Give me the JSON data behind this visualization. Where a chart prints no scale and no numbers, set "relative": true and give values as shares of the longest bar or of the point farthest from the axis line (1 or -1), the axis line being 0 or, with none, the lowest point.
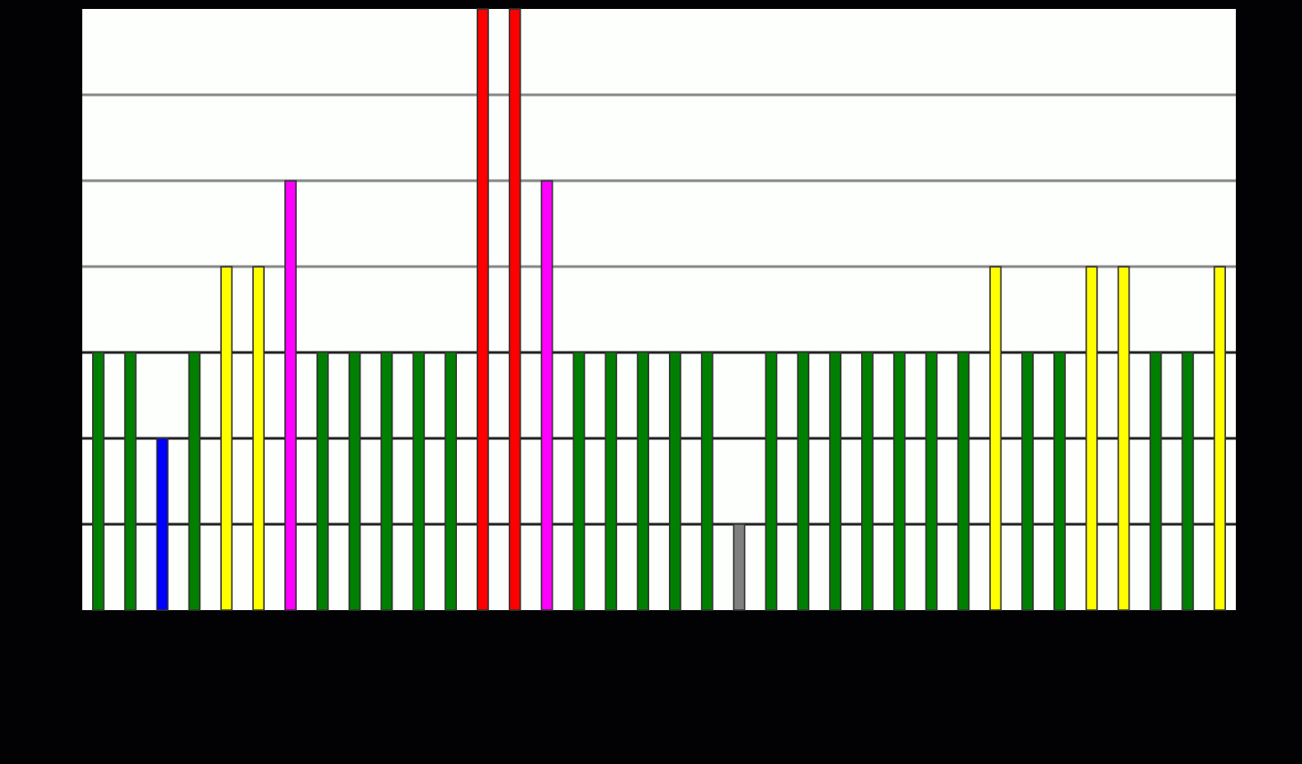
{
  "chart_data": {
    "type": "bar",
    "relative": true,
    "grid": "y",
    "categories": [
      null,
      null,
      null,
      null,
      null,
      null,
      null,
      null,
      null,
      null,
      null,
      null,
      null,
      null,
      null,
      null,
      null,
      null,
      null,
      null,
      null,
      null,
      null,
      null,
      null,
      null,
      null,
      null,
      null,
      null,
      null,
      null,
      null,
      null,
      null,
      null
    ],
    "values": [
      0.429,
      0.429,
      0.286,
      0.429,
      0.571,
      0.571,
      0.714,
      0.429,
      0.429,
      0.429,
      0.429,
      0.429,
      1,
      1,
      0.714,
      0.429,
      0.429,
      0.429,
      0.429,
      0.429,
      0.143,
      0.429,
      0.429,
      0.429,
      0.429,
      0.429,
      0.429,
      0.429,
      0.571,
      0.429,
      0.429,
      0.571,
      0.571,
      0.429,
      0.429,
      0.571
    ],
    "colors": [
      "#008000",
      "#008000",
      "#0000ff",
      "#008000",
      "#ffff00",
      "#ffff00",
      "#ff00ff",
      "#008000",
      "#008000",
      "#008000",
      "#008000",
      "#008000",
      "#ff0000",
      "#ff0000",
      "#ff00ff",
      "#008000",
      "#008000",
      "#008000",
      "#008000",
      "#008000",
      "#808080",
      "#008000",
      "#008000",
      "#008000",
      "#008000",
      "#008000",
      "#008000",
      "#008000",
      "#ffff00",
      "#008000",
      "#008000",
      "#ffff00",
      "#ffff00",
      "#008000",
      "#008000",
      "#ffff00"
    ]
  }
}
